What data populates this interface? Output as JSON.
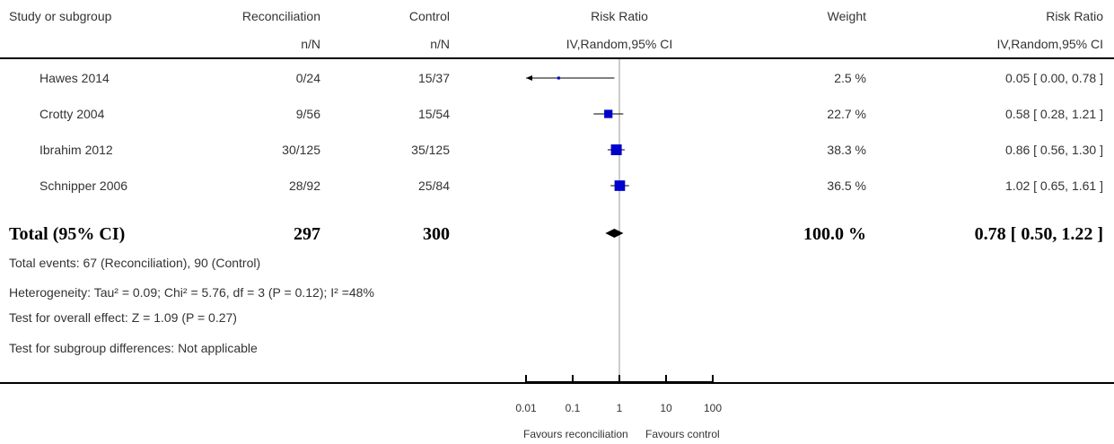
{
  "header": {
    "study": "Study or subgroup",
    "treatment": "Reconciliation",
    "treatment_sub": "n/N",
    "control": "Control",
    "control_sub": "n/N",
    "rr": "Risk Ratio",
    "rr_sub": "IV,Random,95% CI",
    "weight": "Weight",
    "rr2": "Risk Ratio",
    "rr2_sub": "IV,Random,95% CI"
  },
  "rows": [
    {
      "study": "Hawes 2014",
      "treatment": "0/24",
      "control": "15/37",
      "weight": "2.5 %",
      "ci_text": "0.05 [ 0.00, 0.78 ]"
    },
    {
      "study": "Crotty 2004",
      "treatment": "9/56",
      "control": "15/54",
      "weight": "22.7 %",
      "ci_text": "0.58 [ 0.28, 1.21 ]"
    },
    {
      "study": "Ibrahim 2012",
      "treatment": "30/125",
      "control": "35/125",
      "weight": "38.3 %",
      "ci_text": "0.86 [ 0.56, 1.30 ]"
    },
    {
      "study": "Schnipper 2006",
      "treatment": "28/92",
      "control": "25/84",
      "weight": "36.5 %",
      "ci_text": "1.02 [ 0.65, 1.61 ]"
    }
  ],
  "total": {
    "label": "Total (95% CI)",
    "treatment": "297",
    "control": "300",
    "weight": "100.0 %",
    "ci_text": "0.78 [ 0.50, 1.22 ]"
  },
  "notes": {
    "events": "Total events: 67 (Reconciliation), 90 (Control)",
    "heterogeneity": "Heterogeneity: Tau² = 0.09; Chi² = 5.76, df = 3 (P = 0.12); I² =48%",
    "overall": "Test for overall effect: Z = 1.09 (P = 0.27)",
    "subgroup": "Test for subgroup differences: Not applicable"
  },
  "axis": {
    "ticks": [
      {
        "value": 0.01,
        "label": "0.01"
      },
      {
        "value": 0.1,
        "label": "0.1"
      },
      {
        "value": 1,
        "label": "1"
      },
      {
        "value": 10,
        "label": "10"
      },
      {
        "value": 100,
        "label": "100"
      }
    ],
    "favours_left": "Favours reconciliation",
    "favours_right": "Favours control"
  },
  "chart_data": {
    "type": "forest",
    "xscale": "log",
    "xlim": [
      0.01,
      100
    ],
    "categories": [
      "Hawes 2014",
      "Crotty 2004",
      "Ibrahim 2012",
      "Schnipper 2006"
    ],
    "series": [
      {
        "rr": 0.05,
        "lower": 0.0,
        "upper": 0.78,
        "weight": 2.5
      },
      {
        "rr": 0.58,
        "lower": 0.28,
        "upper": 1.21,
        "weight": 22.7
      },
      {
        "rr": 0.86,
        "lower": 0.56,
        "upper": 1.3,
        "weight": 38.3
      },
      {
        "rr": 1.02,
        "lower": 0.65,
        "upper": 1.61,
        "weight": 36.5
      }
    ],
    "pooled": {
      "rr": 0.78,
      "lower": 0.5,
      "upper": 1.22
    },
    "marker_color": "#0000cc"
  }
}
